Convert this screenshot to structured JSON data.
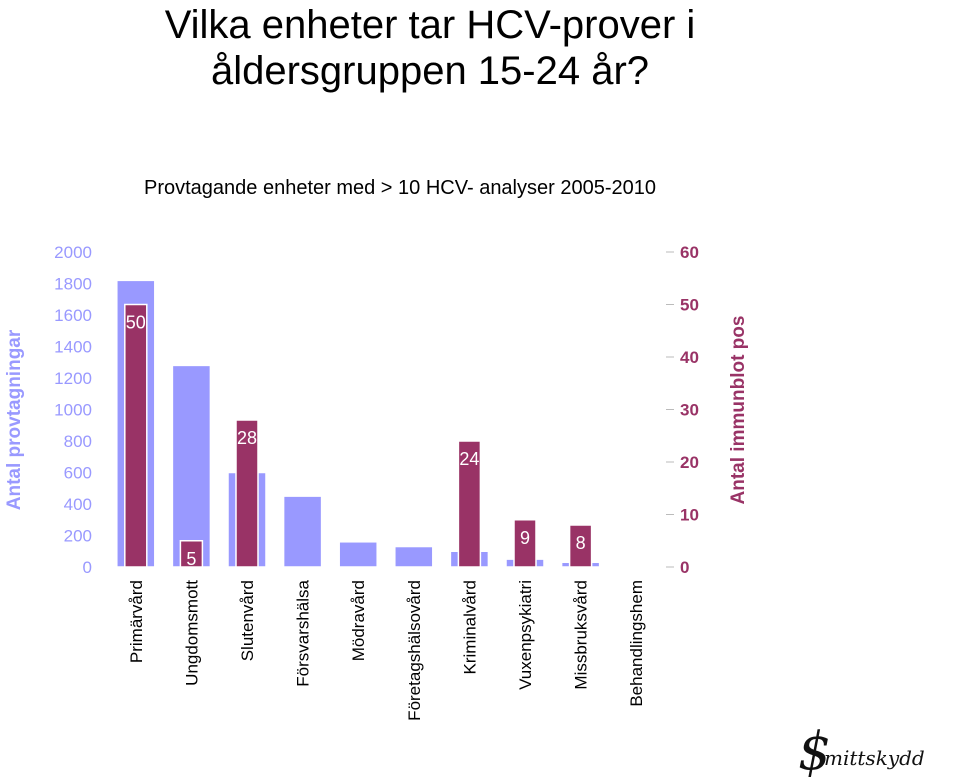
{
  "page": {
    "title_line1": "Vilka enheter tar HCV-prover i",
    "title_line2": "åldersgruppen 15-24 år?",
    "logo_text": "mittskydd",
    "logo_symbol": "$"
  },
  "chart_data": {
    "type": "bar",
    "title": "Provtagande enheter med  > 10 HCV- analyser 2005-2010",
    "categories": [
      "Primärvård",
      "Ungdomsmott",
      "Slutenvård",
      "Försvarshälsa",
      "Mödravård",
      "Företagshälsovård",
      "Kriminalvård",
      "Vuxenpsykiatri",
      "Missbruksvård",
      "Behandlingshem"
    ],
    "ylabel_left": "Antal provtagningar",
    "ylabel_right": "Antal immunblot pos",
    "ylim_left": [
      0,
      2000
    ],
    "yticks_left": [
      0,
      200,
      400,
      600,
      800,
      1000,
      1200,
      1400,
      1600,
      1800,
      2000
    ],
    "ylim_right": [
      0,
      60
    ],
    "yticks_right": [
      0,
      10,
      20,
      30,
      40,
      50,
      60
    ],
    "series": [
      {
        "axis": "left",
        "color": "#9999ff",
        "values": [
          1820,
          1280,
          600,
          450,
          160,
          130,
          100,
          50,
          30,
          5
        ]
      },
      {
        "axis": "right",
        "color": "#993366",
        "values": [
          50,
          5,
          28,
          null,
          null,
          null,
          24,
          9,
          8,
          null
        ],
        "labels": [
          "50",
          "5",
          "28",
          "",
          "",
          "",
          "24",
          "9",
          "8",
          ""
        ]
      }
    ],
    "grid": false
  }
}
